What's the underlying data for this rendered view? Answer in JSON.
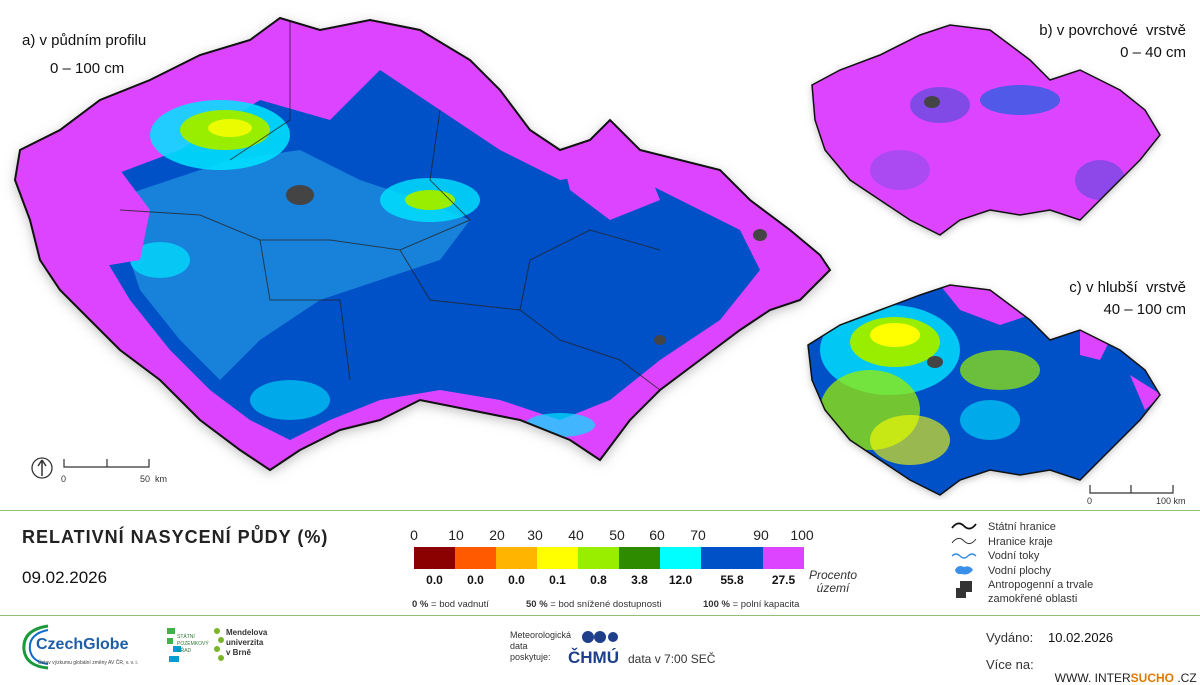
{
  "panels": {
    "a": {
      "title": "a) v půdním profilu",
      "subtitle": "0 – 100 cm"
    },
    "b": {
      "title": "b) v povrchové  vrstvě",
      "subtitle": "0 – 40 cm"
    },
    "c": {
      "title": "c) v hlubší  vrstvě",
      "subtitle": "40 – 100 cm"
    }
  },
  "scalebars": {
    "main": {
      "start": "0",
      "end": "50  km"
    },
    "small": {
      "start": "0",
      "end": "100 km"
    }
  },
  "legend": {
    "title": "RELATIVNÍ NASYCENÍ PŮDY (%)",
    "date": "09.02.2026",
    "ticks": [
      "0",
      "10",
      "20",
      "30",
      "40",
      "50",
      "60",
      "70",
      "90",
      "100"
    ],
    "classes": [
      {
        "color": "#8b0000",
        "percent": "0.0"
      },
      {
        "color": "#ff5a00",
        "percent": "0.0"
      },
      {
        "color": "#ffb400",
        "percent": "0.0"
      },
      {
        "color": "#ffff00",
        "percent": "0.1"
      },
      {
        "color": "#99ee00",
        "percent": "0.8"
      },
      {
        "color": "#2e8b00",
        "percent": "3.8"
      },
      {
        "color": "#00ffff",
        "percent": "12.0"
      },
      {
        "color": "#0050c8",
        "percent": "55.8"
      },
      {
        "color": "#dd44ff",
        "percent": "27.5"
      }
    ],
    "area_label_1": "Procento",
    "area_label_2": "území",
    "notes": [
      {
        "value": "0 %",
        "text": "= bod vadnutí"
      },
      {
        "value": "50 %",
        "text": "= bod snížené dostupnosti"
      },
      {
        "value": "100 %",
        "text": "= polní kapacita"
      }
    ]
  },
  "map_legend": {
    "items": [
      {
        "icon": "state-border-icon",
        "label": "Státní hranice"
      },
      {
        "icon": "region-border-icon",
        "label": "Hranice kraje"
      },
      {
        "icon": "river-icon",
        "label": "Vodní toky"
      },
      {
        "icon": "water-body-icon",
        "label": "Vodní plochy"
      },
      {
        "icon": "anthropogenic-area-icon",
        "label": "Antropogenní a trvale"
      },
      {
        "icon": "",
        "label": "zamokřené oblasti"
      }
    ]
  },
  "footer": {
    "czechglobe": "CzechGlobe",
    "czechglobe_sub": "Ústav výzkumu globální změny AV ČR, v. v. i.",
    "spu_line1": "STÁTNÍ",
    "spu_line2": "POZEMKOVÝ",
    "spu_line3": "ÚŘAD",
    "mendel_line1": "Mendelova",
    "mendel_line2": "univerzita",
    "mendel_line3": "v Brně",
    "provider_line1": "Meteorologická",
    "provider_line2": "data",
    "provider_line3": "poskytuje:",
    "chmu": "ČHMÚ",
    "data_time": "data v 7:00 SEČ",
    "issued_label": "Vydáno:",
    "issued_date": "10.02.2026",
    "more_label": "Více na:",
    "url_prefix": "WWW. INTER",
    "url_brand": "SUCHO",
    "url_suffix": " .CZ"
  },
  "colors": {
    "magenta": "#dd44ff",
    "blue": "#0050c8",
    "cyan": "#00ffff",
    "yellow": "#ffff00",
    "lime": "#99ee00",
    "green_accent": "#8fc178"
  }
}
